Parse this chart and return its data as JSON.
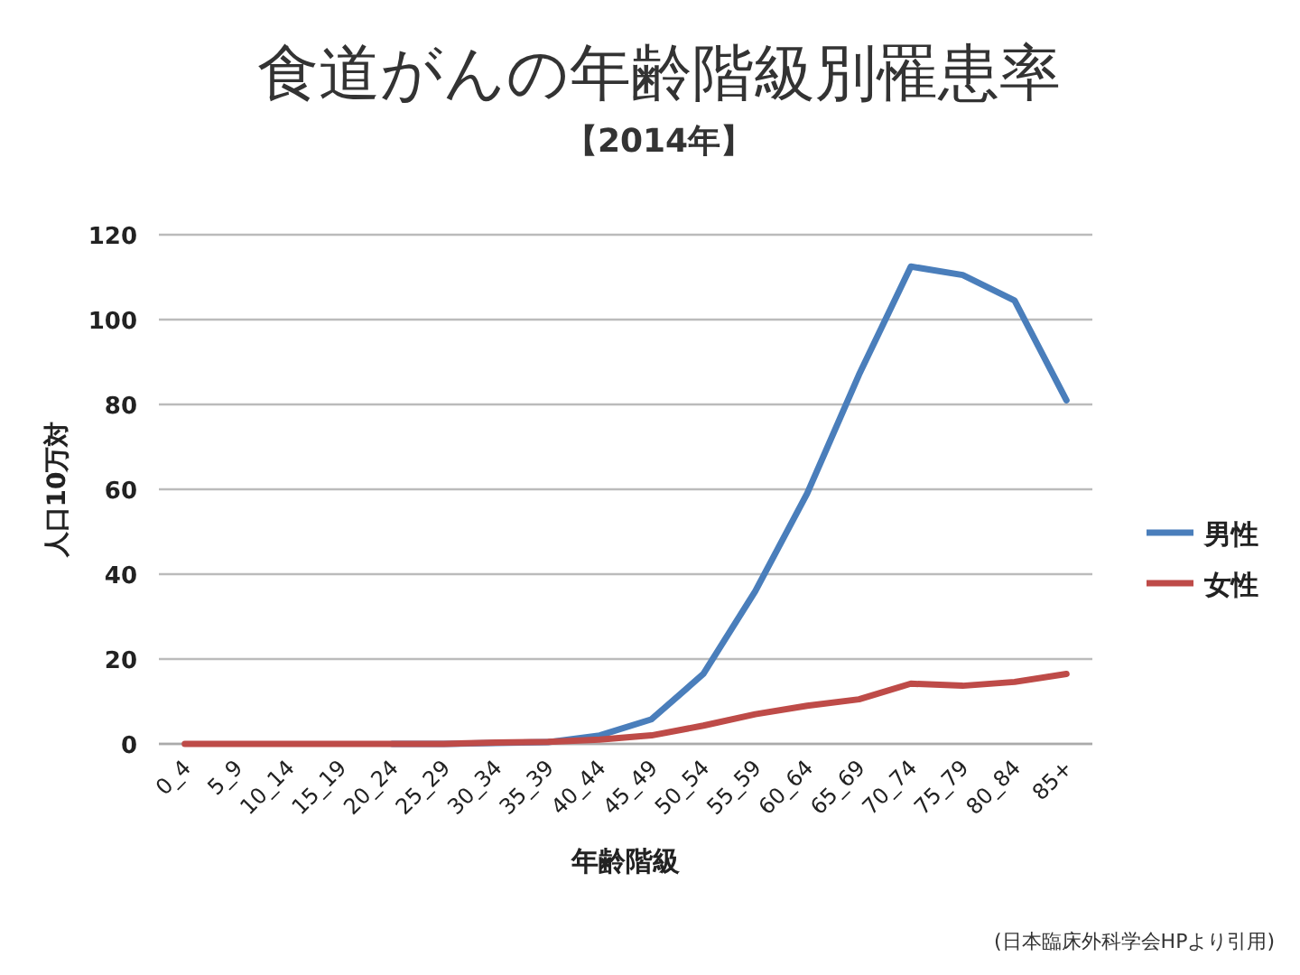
{
  "chart_data": {
    "type": "line",
    "title": "食道がんの年齢階級別罹患率",
    "subtitle": "【2014年】",
    "xlabel": "年齢階級",
    "ylabel": "人口10万対",
    "categories": [
      "0_4",
      "5_9",
      "10_14",
      "15_19",
      "20_24",
      "25_29",
      "30_34",
      "35_39",
      "40_44",
      "45_49",
      "50_54",
      "55_59",
      "60_64",
      "65_69",
      "70_74",
      "75_79",
      "80_84",
      "85+"
    ],
    "series": [
      {
        "name": "男性",
        "color": "#4a7ebb",
        "values": [
          null,
          null,
          null,
          null,
          0,
          0,
          0.2,
          0.4,
          2,
          5.8,
          16.5,
          36,
          59,
          87,
          112.5,
          110.5,
          104.5,
          81
        ]
      },
      {
        "name": "女性",
        "color": "#be4b48",
        "values": [
          0,
          0,
          0,
          0,
          0,
          0,
          0.3,
          0.5,
          1,
          2,
          4.3,
          7,
          9,
          10.5,
          14.2,
          13.7,
          14.6,
          16.5
        ]
      }
    ],
    "ylim": [
      0,
      120
    ],
    "yticks": [
      0,
      20,
      40,
      60,
      80,
      100,
      120
    ],
    "grid": "y",
    "legend": "right",
    "marker": "none",
    "line_style": "solid",
    "annotations": [
      "(日本臨床外科学会HPより引用)"
    ]
  }
}
